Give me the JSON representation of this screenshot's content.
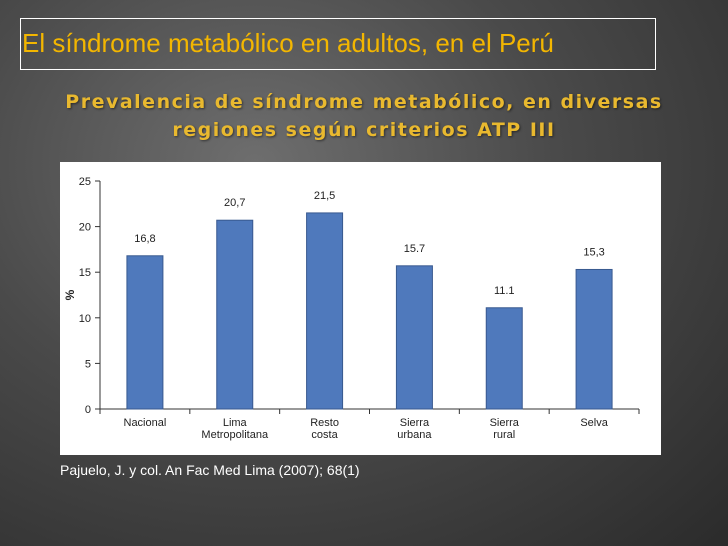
{
  "slide": {
    "title": "El síndrome metabólico en adultos, en el Perú",
    "subtitle_line1": "Prevalencia de síndrome metabólico, en diversas",
    "subtitle_line2": "regiones según criterios ATP III",
    "source": "Pajuelo, J. y col. An Fac Med Lima (2007); 68(1)"
  },
  "colors": {
    "title": "#f3b600",
    "subtitle": "#e9b92f",
    "bar": "#4f79bc",
    "bar_edge": "#38598f"
  },
  "chart_data": {
    "type": "bar",
    "ylabel": "%",
    "ylim": [
      0,
      25
    ],
    "yticks": [
      0,
      5,
      10,
      15,
      20,
      25
    ],
    "grid": false,
    "legend": "none",
    "categories": [
      [
        "Nacional"
      ],
      [
        "Lima",
        "Metropolitana"
      ],
      [
        "Resto",
        "costa"
      ],
      [
        "Sierra",
        "urbana"
      ],
      [
        "Sierra",
        "rural"
      ],
      [
        "Selva"
      ]
    ],
    "values": [
      16.8,
      20.7,
      21.5,
      15.7,
      11.1,
      15.3
    ],
    "data_labels": [
      "16,8",
      "20,7",
      "21,5",
      "15.7",
      "11.1",
      "15,3"
    ]
  }
}
